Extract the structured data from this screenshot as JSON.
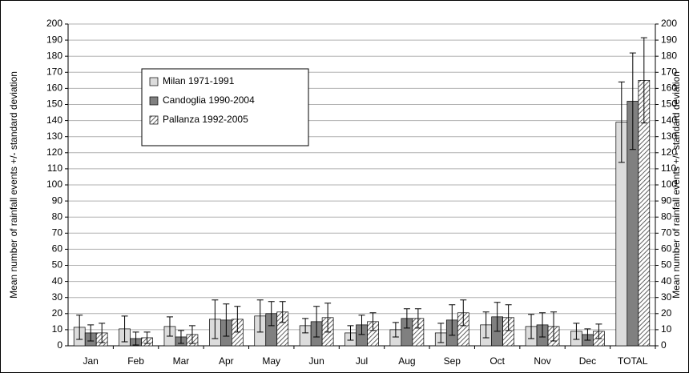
{
  "chart_data": {
    "type": "bar",
    "categories": [
      "Jan",
      "Feb",
      "Mar",
      "Apr",
      "May",
      "Jun",
      "Jul",
      "Aug",
      "Sep",
      "Oct",
      "Nov",
      "Dec",
      "TOTAL"
    ],
    "series": [
      {
        "name": "Milan 1971-1991",
        "color": "#dcdcdc",
        "hatch": false,
        "values": [
          11.5,
          10.5,
          12,
          16.5,
          18.5,
          12.5,
          8,
          10,
          8,
          13,
          12,
          9,
          139
        ],
        "errors": [
          7.5,
          8,
          6,
          12,
          10,
          4.5,
          4.5,
          4.5,
          6,
          8,
          7.5,
          5,
          25
        ]
      },
      {
        "name": "Candoglia 1990-2004",
        "color": "#808080",
        "hatch": false,
        "values": [
          8,
          4.5,
          5.5,
          16,
          20,
          15,
          13,
          17,
          16,
          18,
          13,
          7,
          152
        ],
        "errors": [
          5,
          4,
          4,
          10,
          7.5,
          9.5,
          6,
          6,
          9.5,
          9,
          7.5,
          3.5,
          30
        ]
      },
      {
        "name": "Pallanza 1992-2005",
        "color": "#909090",
        "hatch": true,
        "values": [
          8,
          5,
          7,
          16.5,
          21,
          17.5,
          15,
          17,
          20.5,
          17.5,
          12,
          9,
          165
        ],
        "errors": [
          6,
          3.5,
          5.5,
          8,
          6.5,
          9,
          5.5,
          6,
          8,
          8,
          9,
          4.5,
          26.5
        ]
      }
    ],
    "ylabel": "Mean number of rainfall events +/- standard deviation",
    "y2label": "Mean number of rainfall events +/- standard deviation",
    "ylim": [
      0,
      200
    ],
    "yticks": [
      0,
      10,
      20,
      30,
      40,
      50,
      60,
      70,
      80,
      90,
      100,
      110,
      120,
      130,
      140,
      150,
      160,
      170,
      180,
      190,
      200
    ],
    "y2lim": [
      0,
      200
    ],
    "y2ticks": [
      0,
      10,
      20,
      30,
      40,
      50,
      60,
      70,
      80,
      90,
      100,
      110,
      120,
      130,
      140,
      150,
      160,
      170,
      180,
      190,
      200
    ],
    "grid": true,
    "legend": "upper left"
  }
}
